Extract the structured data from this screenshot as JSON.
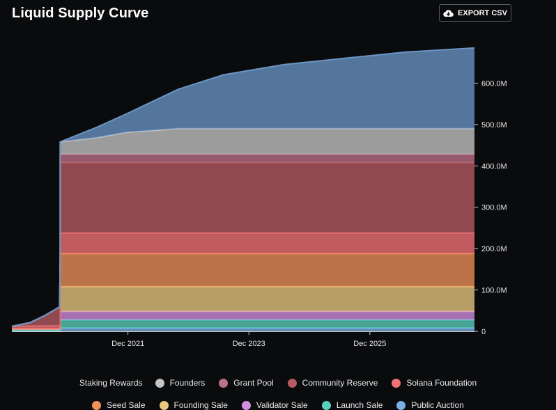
{
  "title": "Liquid Supply Curve",
  "export_button": {
    "label": "EXPORT CSV",
    "icon": "cloud-download-icon"
  },
  "chart_data": {
    "type": "area",
    "stacked": true,
    "y_ticks": [
      "0",
      "100.0M",
      "200.0M",
      "300.0M",
      "400.0M",
      "500.0M",
      "600.0M"
    ],
    "y_tick_values": [
      0,
      100,
      200,
      300,
      400,
      500,
      600
    ],
    "y_unit": "M",
    "ylim": [
      0,
      700
    ],
    "x_ticks": [
      "Dec 2021",
      "Dec 2023",
      "Dec 2025"
    ],
    "x_tick_values": [
      2021.92,
      2023.92,
      2025.92
    ],
    "xlim": [
      2020.0,
      2027.65
    ],
    "legend_position": "bottom",
    "series": [
      {
        "name": "Public Auction",
        "color": "#7bb0e6",
        "values_M": [
          [
            2020.0,
            0
          ],
          [
            2020.8,
            0
          ],
          [
            2020.8,
            8
          ],
          [
            2027.65,
            8
          ]
        ]
      },
      {
        "name": "Launch Sale",
        "color": "#5ad0bc",
        "values_M": [
          [
            2020.0,
            3
          ],
          [
            2020.8,
            3
          ],
          [
            2020.8,
            20
          ],
          [
            2027.65,
            20
          ]
        ]
      },
      {
        "name": "Validator Sale",
        "color": "#d28ee0",
        "values_M": [
          [
            2020.0,
            3
          ],
          [
            2020.8,
            3
          ],
          [
            2020.8,
            20
          ],
          [
            2027.65,
            20
          ]
        ]
      },
      {
        "name": "Founding Sale",
        "color": "#e8c87e",
        "values_M": [
          [
            2020.0,
            0
          ],
          [
            2020.8,
            0
          ],
          [
            2020.8,
            60
          ],
          [
            2027.65,
            60
          ]
        ]
      },
      {
        "name": "Seed Sale",
        "color": "#f0915a",
        "values_M": [
          [
            2020.0,
            0
          ],
          [
            2020.8,
            0
          ],
          [
            2020.8,
            80
          ],
          [
            2027.65,
            80
          ]
        ]
      },
      {
        "name": "Solana Foundation",
        "color": "#f37277",
        "values_M": [
          [
            2020.0,
            6
          ],
          [
            2020.3,
            7
          ],
          [
            2020.8,
            8
          ],
          [
            2020.8,
            50
          ],
          [
            2027.65,
            50
          ]
        ]
      },
      {
        "name": "Community Reserve",
        "color": "#b65b64",
        "values_M": [
          [
            2020.0,
            0
          ],
          [
            2020.3,
            8
          ],
          [
            2020.55,
            25
          ],
          [
            2020.79,
            45
          ],
          [
            2020.8,
            170
          ],
          [
            2027.65,
            170
          ]
        ]
      },
      {
        "name": "Grant Pool",
        "color": "#bb7187",
        "values_M": [
          [
            2020.0,
            0
          ],
          [
            2020.8,
            0
          ],
          [
            2020.8,
            20
          ],
          [
            2027.65,
            20
          ]
        ]
      },
      {
        "name": "Founders",
        "color": "#c5c5c5",
        "values_M": [
          [
            2020.0,
            0
          ],
          [
            2020.8,
            0
          ],
          [
            2020.8,
            30
          ],
          [
            2021.4,
            40
          ],
          [
            2021.9,
            53
          ],
          [
            2022.75,
            62
          ],
          [
            2027.65,
            62
          ]
        ]
      },
      {
        "name": "Staking Rewards",
        "color": "#6a95c5",
        "values_M": [
          [
            2020.0,
            0
          ],
          [
            2020.8,
            0
          ],
          [
            2021.4,
            25
          ],
          [
            2021.9,
            45
          ],
          [
            2022.75,
            95
          ],
          [
            2023.5,
            130
          ],
          [
            2024.5,
            155
          ],
          [
            2025.5,
            170
          ],
          [
            2026.5,
            185
          ],
          [
            2027.65,
            195
          ]
        ]
      }
    ]
  },
  "legend_rows": [
    [
      "Staking Rewards",
      "Founders",
      "Grant Pool",
      "Community Reserve",
      "Solana Foundation"
    ],
    [
      "Seed Sale",
      "Founding Sale",
      "Validator Sale",
      "Launch Sale",
      "Public Auction"
    ]
  ],
  "legend_first_has_dot": false
}
